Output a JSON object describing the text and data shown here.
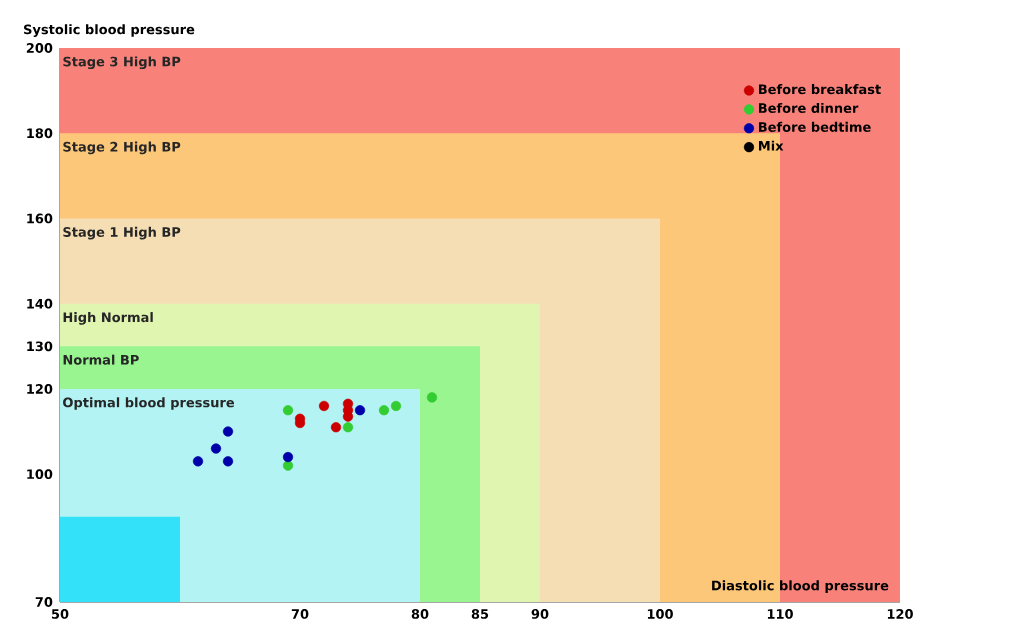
{
  "chart_data": {
    "type": "scatter",
    "xlabel": "Diastolic blood pressure",
    "ylabel": "Systolic blood pressure",
    "xlim": [
      50,
      120
    ],
    "ylim": [
      70,
      200
    ],
    "xticks": [
      50,
      70,
      80,
      85,
      90,
      100,
      110,
      120
    ],
    "yticks": [
      70,
      100,
      120,
      130,
      140,
      160,
      180,
      200
    ],
    "legend": "top right",
    "bands": [
      {
        "axis": "y",
        "from": 70,
        "to": 200,
        "label": "Stage 3 High BP",
        "color": "#f8827a"
      }
    ],
    "series": [
      {
        "type": "area",
        "name": "Stage 2 High BP",
        "color": "#fdc77a",
        "x": [
          50,
          110
        ],
        "values": [
          180,
          180
        ]
      },
      {
        "type": "area",
        "name": "Stage 1 High BP",
        "color": "#f5deb3",
        "x": [
          50,
          100
        ],
        "values": [
          160,
          160
        ]
      },
      {
        "type": "area",
        "name": "High Normal",
        "color": "#e0f5b0",
        "x": [
          50,
          90
        ],
        "values": [
          140,
          140
        ]
      },
      {
        "type": "area",
        "name": "Normal BP",
        "color": "#98f58f",
        "x": [
          50,
          85
        ],
        "values": [
          130,
          130
        ]
      },
      {
        "type": "area",
        "name": "Optimal blood pressure",
        "color": "#b3f3f3",
        "x": [
          50,
          80
        ],
        "values": [
          120,
          120
        ]
      },
      {
        "type": "area",
        "color": "#33e1f8",
        "x": [
          50,
          60
        ],
        "values": [
          90,
          90
        ]
      },
      {
        "name": "Before breakfast",
        "color": "#cc0000",
        "x": [
          72,
          70,
          70,
          74,
          74,
          74,
          73
        ],
        "values": [
          116,
          113,
          112,
          116.5,
          115,
          113.5,
          111
        ]
      },
      {
        "name": "Before dinner",
        "color": "#33cc33",
        "x": [
          69,
          74,
          77,
          78,
          81,
          69
        ],
        "values": [
          115,
          111,
          115,
          116,
          118,
          102
        ]
      },
      {
        "name": "Before bedtime",
        "color": "#0000aa",
        "x": [
          75,
          64,
          63,
          61.5,
          64,
          69
        ],
        "values": [
          115,
          110,
          106,
          103,
          103,
          104
        ]
      },
      {
        "name": "Mix",
        "color": "#000000"
      }
    ]
  }
}
